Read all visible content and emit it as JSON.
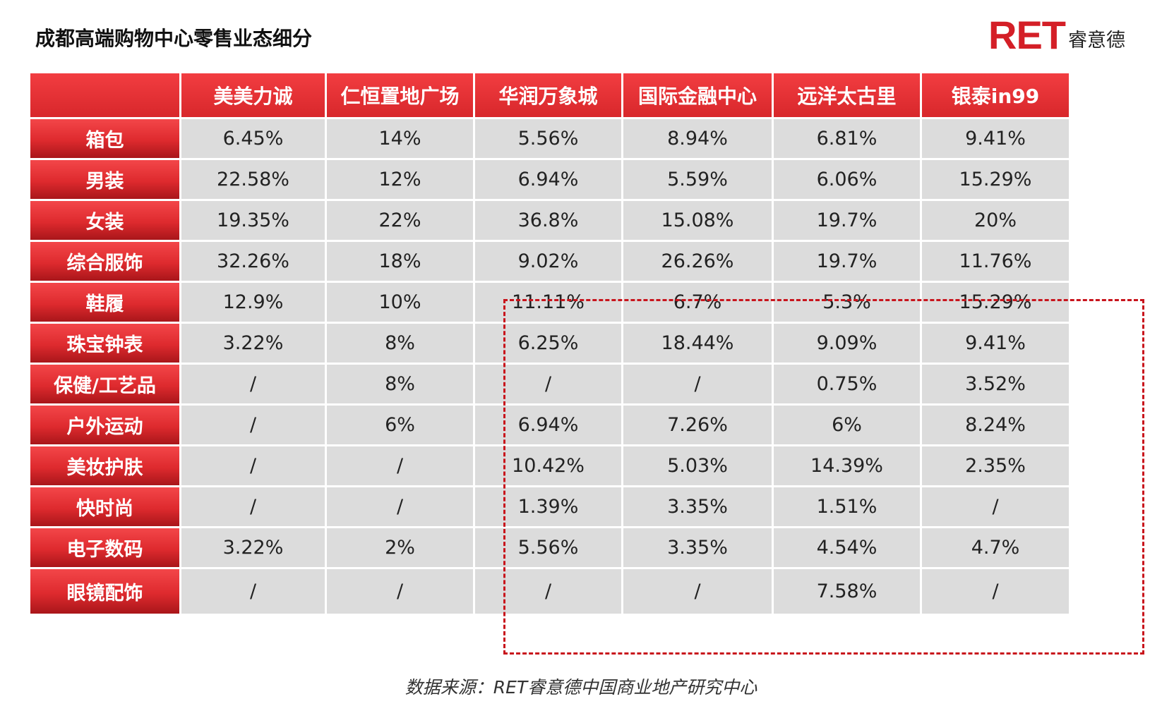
{
  "title": "成都高端购物中心零售业态细分",
  "logo": {
    "mark": "RET",
    "name": "睿意德"
  },
  "columns": [
    "美美力诚",
    "仁恒置地广场",
    "华润万象城",
    "国际金融中心",
    "远洋太古里",
    "银泰in99"
  ],
  "rows": [
    {
      "label": "箱包",
      "values": [
        "6.45%",
        "14%",
        "5.56%",
        "8.94%",
        "6.81%",
        "9.41%"
      ]
    },
    {
      "label": "男装",
      "values": [
        "22.58%",
        "12%",
        "6.94%",
        "5.59%",
        "6.06%",
        "15.29%"
      ]
    },
    {
      "label": "女装",
      "values": [
        "19.35%",
        "22%",
        "36.8%",
        "15.08%",
        "19.7%",
        "20%"
      ]
    },
    {
      "label": "综合服饰",
      "values": [
        "32.26%",
        "18%",
        "9.02%",
        "26.26%",
        "19.7%",
        "11.76%"
      ]
    },
    {
      "label": "鞋履",
      "values": [
        "12.9%",
        "10%",
        "11.11%",
        "6.7%",
        "5.3%",
        "15.29%"
      ]
    },
    {
      "label": "珠宝钟表",
      "values": [
        "3.22%",
        "8%",
        "6.25%",
        "18.44%",
        "9.09%",
        "9.41%"
      ]
    },
    {
      "label": "保健/工艺品",
      "values": [
        "/",
        "8%",
        "/",
        "/",
        "0.75%",
        "3.52%"
      ]
    },
    {
      "label": "户外运动",
      "values": [
        "/",
        "6%",
        "6.94%",
        "7.26%",
        "6%",
        "8.24%"
      ]
    },
    {
      "label": "美妆护肤",
      "values": [
        "/",
        "/",
        "10.42%",
        "5.03%",
        "14.39%",
        "2.35%"
      ]
    },
    {
      "label": "快时尚",
      "values": [
        "/",
        "/",
        "1.39%",
        "3.35%",
        "1.51%",
        "/"
      ]
    },
    {
      "label": "电子数码",
      "values": [
        "3.22%",
        "2%",
        "5.56%",
        "3.35%",
        "4.54%",
        "4.7%"
      ]
    },
    {
      "label": "眼镜配饰",
      "values": [
        "/",
        "/",
        "/",
        "/",
        "7.58%",
        "/"
      ]
    }
  ],
  "source": "数据来源：RET睿意德中国商业地产研究中心",
  "colors": {
    "header_red": "#e1262b",
    "cell_gray": "#dcdcdc",
    "highlight_border": "#c8141c"
  }
}
